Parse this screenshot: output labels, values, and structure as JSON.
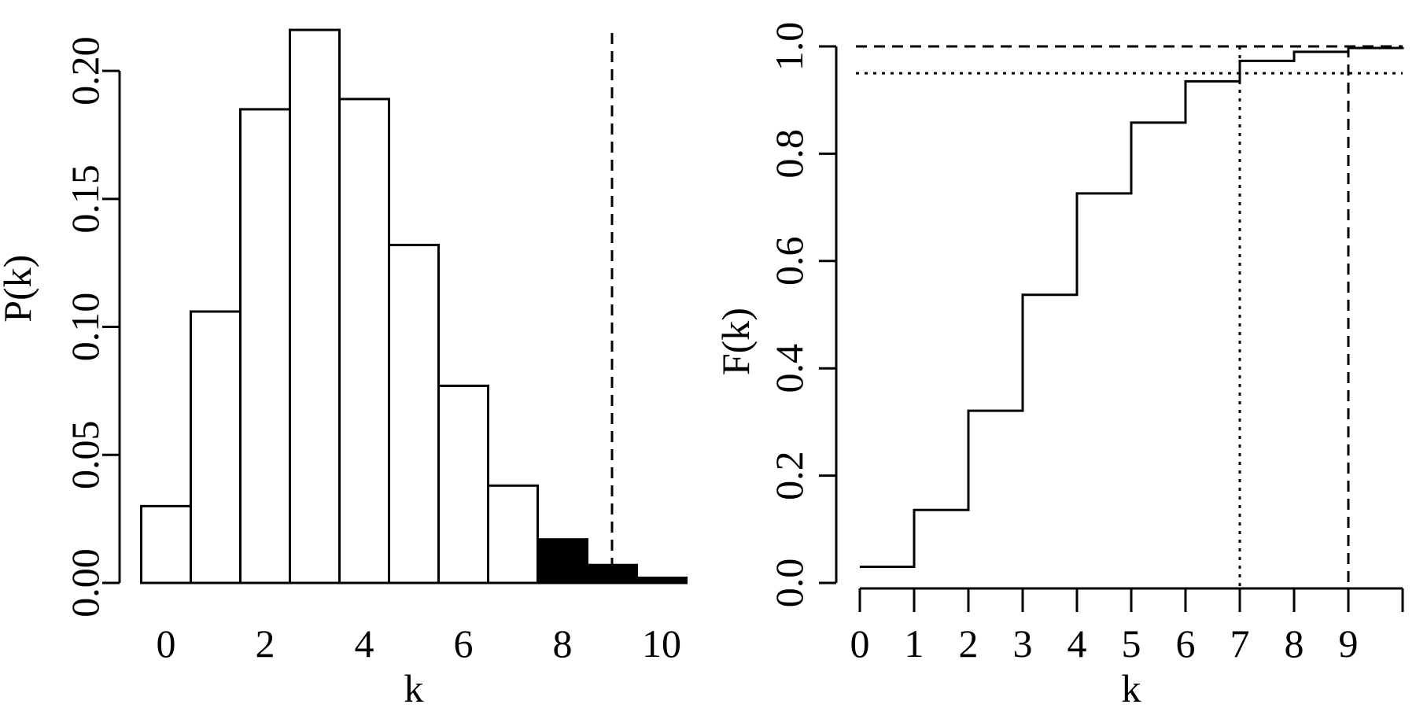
{
  "chart_data": [
    {
      "type": "bar",
      "filled_categories": [
        "8",
        "9",
        "10"
      ],
      "categories": [
        "0",
        "1",
        "2",
        "3",
        "4",
        "5",
        "6",
        "7",
        "8",
        "9",
        "10"
      ],
      "values": [
        0.03,
        0.106,
        0.185,
        0.216,
        0.189,
        0.132,
        0.077,
        0.038,
        0.017,
        0.007,
        0.002
      ],
      "xlabel": "k",
      "ylabel": "P(k)",
      "xticks": [
        "0",
        "2",
        "4",
        "6",
        "8",
        "10"
      ],
      "yticks": [
        "0.00",
        "0.05",
        "0.10",
        "0.15",
        "0.20"
      ],
      "ylim": [
        0,
        0.22
      ],
      "reference_line_x": 9,
      "fill_color": "#000000",
      "bar_color": "#ffffff",
      "grid": false
    },
    {
      "type": "line",
      "step": true,
      "x": [
        0,
        1,
        2,
        3,
        4,
        5,
        6,
        7,
        8,
        9,
        10
      ],
      "y": [
        0.03,
        0.136,
        0.321,
        0.537,
        0.726,
        0.858,
        0.935,
        0.973,
        0.99,
        0.997,
        0.999
      ],
      "xlabel": "k",
      "ylabel": "F(k)",
      "xticks": [
        "0",
        "1",
        "2",
        "3",
        "4",
        "5",
        "6",
        "7",
        "8",
        "9"
      ],
      "yticks": [
        "0.0",
        "0.2",
        "0.4",
        "0.6",
        "0.8",
        "1.0"
      ],
      "ylim": [
        0,
        1
      ],
      "hline_dashed_y": 1.0,
      "hline_dotted_y": 0.95,
      "vline_dotted_x": 7,
      "vline_dashed_x": 9,
      "grid": false
    }
  ]
}
